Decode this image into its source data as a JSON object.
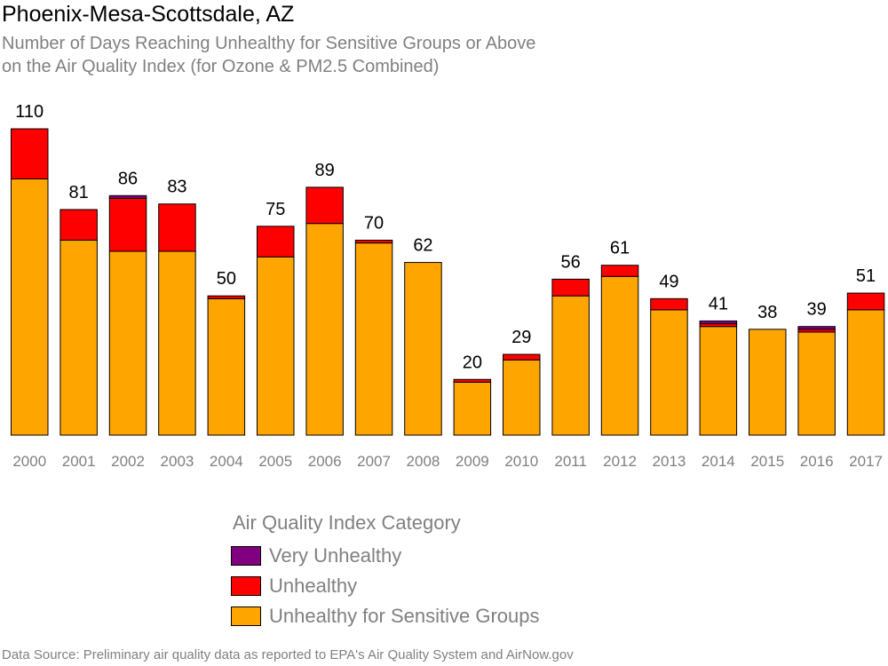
{
  "title": "Phoenix-Mesa-Scottsdale, AZ",
  "subtitle_line1": "Number of Days Reaching Unhealthy for Sensitive Groups or Above",
  "subtitle_line2": "on the Air Quality Index (for Ozone & PM2.5 Combined)",
  "legend": {
    "title": "Air Quality Index Category",
    "items": [
      {
        "label": "Very Unhealthy",
        "color": "#800080"
      },
      {
        "label": "Unhealthy",
        "color": "#ff0000"
      },
      {
        "label": "Unhealthy for Sensitive Groups",
        "color": "#ffa500"
      }
    ]
  },
  "source": "Data Source: Preliminary air quality data as reported to EPA's Air Quality System and AirNow.gov",
  "chart_data": {
    "type": "bar",
    "stacked": true,
    "categories": [
      "2000",
      "2001",
      "2002",
      "2003",
      "2004",
      "2005",
      "2006",
      "2007",
      "2008",
      "2009",
      "2010",
      "2011",
      "2012",
      "2013",
      "2014",
      "2015",
      "2016",
      "2017"
    ],
    "totals": [
      110,
      81,
      86,
      83,
      50,
      75,
      89,
      70,
      62,
      20,
      29,
      56,
      61,
      49,
      41,
      38,
      39,
      51
    ],
    "ylim": [
      0,
      110
    ],
    "series": [
      {
        "name": "Unhealthy for Sensitive Groups",
        "color": "#ffa500",
        "values": [
          92,
          70,
          66,
          66,
          49,
          64,
          76,
          69,
          62,
          19,
          27,
          50,
          57,
          45,
          39,
          38,
          37,
          45
        ]
      },
      {
        "name": "Unhealthy",
        "color": "#ff0000",
        "values": [
          18,
          11,
          19,
          17,
          1,
          11,
          13,
          1,
          0,
          1,
          2,
          6,
          4,
          4,
          1,
          0,
          1,
          6
        ]
      },
      {
        "name": "Very Unhealthy",
        "color": "#800080",
        "values": [
          0,
          0,
          1,
          0,
          0,
          0,
          0,
          0,
          0,
          0,
          0,
          0,
          0,
          0,
          1,
          0,
          1,
          0
        ]
      }
    ],
    "grid": false,
    "legend_position": "bottom"
  }
}
